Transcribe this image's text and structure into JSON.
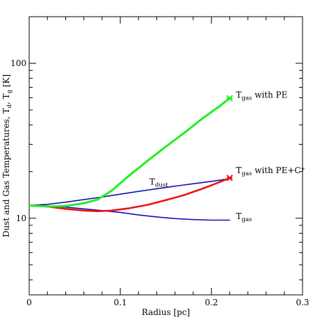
{
  "chart_data": {
    "type": "line",
    "xlabel": "Radius [pc]",
    "ylabel": "Dust and Gas Temperatures, T",
    "ylabel_sub1": "d",
    "ylabel_mid": ", T",
    "ylabel_sub2": "g",
    "ylabel_tail": " [K]",
    "xlim": [
      0,
      0.3
    ],
    "ylim": [
      3.2,
      200
    ],
    "yscale": "log",
    "x_ticks": [
      {
        "value": 0,
        "label": "0"
      },
      {
        "value": 0.1,
        "label": "0.1"
      },
      {
        "value": 0.2,
        "label": "0.2"
      },
      {
        "value": 0.3,
        "label": "0.3"
      }
    ],
    "y_ticks": [
      {
        "value": 10,
        "label": "10"
      },
      {
        "value": 100,
        "label": "100"
      }
    ],
    "series": [
      {
        "key": "tgas_pe",
        "color": "#22ee22",
        "x": [
          0.0,
          0.02,
          0.04,
          0.06,
          0.075,
          0.09,
          0.11,
          0.13,
          0.15,
          0.17,
          0.19,
          0.21,
          0.22
        ],
        "y": [
          12.1,
          11.9,
          12.0,
          12.5,
          13.2,
          15.0,
          18.9,
          23.5,
          29.0,
          35.5,
          44.0,
          53.5,
          59.5
        ]
      },
      {
        "key": "tgas_pe_cplus",
        "color": "#ee1111",
        "x": [
          0.0,
          0.02,
          0.04,
          0.06,
          0.075,
          0.09,
          0.11,
          0.13,
          0.15,
          0.17,
          0.19,
          0.21,
          0.22
        ],
        "y": [
          12.1,
          11.9,
          11.5,
          11.2,
          11.1,
          11.2,
          11.6,
          12.2,
          13.1,
          14.1,
          15.5,
          17.2,
          18.2
        ]
      },
      {
        "key": "tdust",
        "color": "#1111bb",
        "x": [
          0.0,
          0.02,
          0.04,
          0.06,
          0.08,
          0.1,
          0.12,
          0.14,
          0.16,
          0.18,
          0.2,
          0.22
        ],
        "y": [
          12.1,
          12.3,
          12.7,
          13.2,
          13.7,
          14.3,
          14.9,
          15.5,
          16.1,
          16.7,
          17.3,
          18.0
        ]
      },
      {
        "key": "tgas",
        "color": "#1111bb",
        "x": [
          0.0,
          0.02,
          0.04,
          0.06,
          0.08,
          0.1,
          0.12,
          0.14,
          0.16,
          0.18,
          0.2,
          0.22
        ],
        "y": [
          12.1,
          12.0,
          11.8,
          11.5,
          11.2,
          10.9,
          10.5,
          10.2,
          9.95,
          9.8,
          9.72,
          9.72
        ]
      }
    ],
    "annotations": [
      {
        "key": "a_pe",
        "text": "T",
        "sub": "gas",
        "tail": " with PE",
        "x": 0.227,
        "y": 60
      },
      {
        "key": "a_pec",
        "text": "T",
        "sub": "gas",
        "tail": " with PE+C⁺",
        "x": 0.227,
        "y": 19.5
      },
      {
        "key": "a_dust",
        "text": "T",
        "sub": "dust",
        "tail": "",
        "x": 0.132,
        "y": 16.5
      },
      {
        "key": "a_gas",
        "text": "T",
        "sub": "gas",
        "tail": "",
        "x": 0.227,
        "y": 9.9
      }
    ]
  }
}
